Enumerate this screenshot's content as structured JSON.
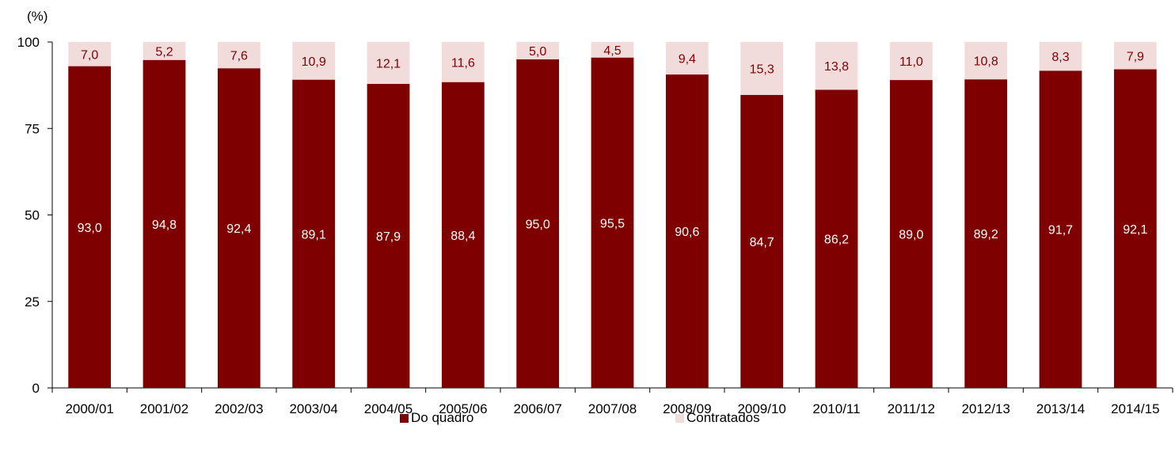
{
  "chart_data": {
    "type": "bar",
    "stacked": true,
    "unit_label": "(%)",
    "categories": [
      "2000/01",
      "2001/02",
      "2002/03",
      "2003/04",
      "2004/05",
      "2005/06",
      "2006/07",
      "2007/08",
      "2008/09",
      "2009/10",
      "2010/11",
      "2011/12",
      "2012/13",
      "2013/14",
      "2014/15"
    ],
    "series": [
      {
        "name": "Do quadro",
        "color": "#7f0000",
        "values": [
          93.0,
          94.8,
          92.4,
          89.1,
          87.9,
          88.4,
          95.0,
          95.5,
          90.6,
          84.7,
          86.2,
          89.0,
          89.2,
          91.7,
          92.1
        ],
        "labels": [
          "93,0",
          "94,8",
          "92,4",
          "89,1",
          "87,9",
          "88,4",
          "95,0",
          "95,5",
          "90,6",
          "84,7",
          "86,2",
          "89,0",
          "89,2",
          "91,7",
          "92,1"
        ]
      },
      {
        "name": "Contratados",
        "color": "#f2dcdb",
        "values": [
          7.0,
          5.2,
          7.6,
          10.9,
          12.1,
          11.6,
          5.0,
          4.5,
          9.4,
          15.3,
          13.8,
          11.0,
          10.8,
          8.3,
          7.9
        ],
        "labels": [
          "7,0",
          "5,2",
          "7,6",
          "10,9",
          "12,1",
          "11,6",
          "5,0",
          "4,5",
          "9,4",
          "15,3",
          "13,8",
          "11,0",
          "10,8",
          "8,3",
          "7,9"
        ]
      }
    ],
    "ylim": [
      0,
      100
    ],
    "yticks": [
      0,
      25,
      50,
      75,
      100
    ],
    "ytick_labels": [
      "0",
      "25",
      "50",
      "75",
      "100"
    ],
    "grid": false,
    "legend_position": "bottom",
    "label_colors": {
      "inner": "#ffffff",
      "outer": "#7f0000"
    }
  }
}
